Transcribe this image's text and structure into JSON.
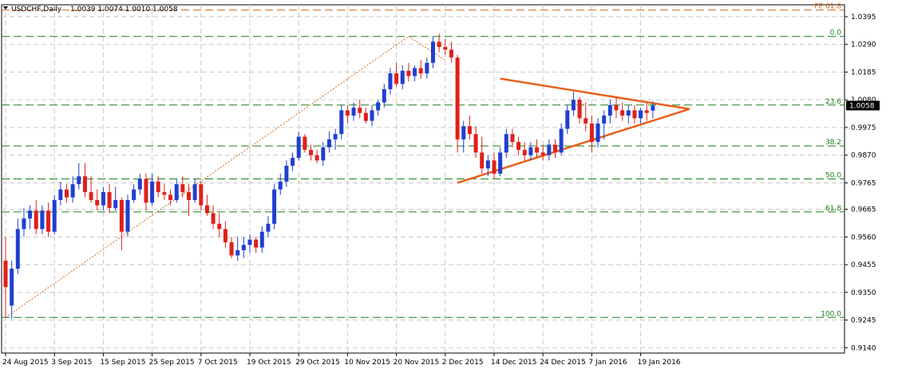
{
  "chart_data": {
    "type": "candlestick",
    "header": {
      "symbol": "USDCHF,Daily",
      "ohlc": "1.0039 1.0074 1.0010 1.0058"
    },
    "ylim": [
      0.912,
      1.044
    ],
    "y_ticks": [
      "1.0395",
      "1.0290",
      "1.0185",
      "1.0080",
      "0.9975",
      "0.9870",
      "0.9765",
      "0.9665",
      "0.9560",
      "0.9455",
      "0.9350",
      "0.9245",
      "0.9140"
    ],
    "x_labels": [
      {
        "label": "24 Aug 2015",
        "index": 0
      },
      {
        "label": "3 Sep 2015",
        "index": 8
      },
      {
        "label": "15 Sep 2015",
        "index": 16
      },
      {
        "label": "25 Sep 2015",
        "index": 24
      },
      {
        "label": "7 Oct 2015",
        "index": 32
      },
      {
        "label": "19 Oct 2015",
        "index": 40
      },
      {
        "label": "29 Oct 2015",
        "index": 48
      },
      {
        "label": "10 Nov 2015",
        "index": 56
      },
      {
        "label": "20 Nov 2015",
        "index": 64
      },
      {
        "label": "2 Dec 2015",
        "index": 72
      },
      {
        "label": "14 Dec 2015",
        "index": 80
      },
      {
        "label": "24 Dec 2015",
        "index": 88
      },
      {
        "label": "7 Jan 2016",
        "index": 96
      },
      {
        "label": "19 Jan 2016",
        "index": 104
      }
    ],
    "current_price": "1.0058",
    "fib_levels": [
      {
        "label": "FE 61.8",
        "value": 1.042,
        "color": "#d2691e"
      },
      {
        "label": "0.0",
        "value": 1.032,
        "color": "#1a7f1a"
      },
      {
        "label": "23.6",
        "value": 1.006,
        "color": "#1a7f1a"
      },
      {
        "label": "38.2",
        "value": 0.9905,
        "color": "#1a7f1a"
      },
      {
        "label": "50.0",
        "value": 0.978,
        "color": "#1a7f1a"
      },
      {
        "label": "61.8",
        "value": 0.9655,
        "color": "#1a7f1a"
      },
      {
        "label": "100.0",
        "value": 0.9255,
        "color": "#1a7f1a"
      }
    ],
    "fib_retracement_line": {
      "from": [
        0,
        0.9255
      ],
      "to": [
        66,
        1.032
      ],
      "color": "#d2691e"
    },
    "pullback_line": {
      "from": [
        66,
        1.032
      ],
      "to": [
        72,
        1.023
      ],
      "color": "#d2691e"
    },
    "triangle": {
      "upper": {
        "from": [
          81,
          1.016
        ],
        "to": [
          112,
          1.0045
        ]
      },
      "lower": {
        "from": [
          74,
          0.9765
        ],
        "to": [
          112,
          1.0045
        ]
      },
      "color": "#e8601c"
    },
    "candles": [
      {
        "o": 0.947,
        "h": 0.956,
        "l": 0.9255,
        "c": 0.937
      },
      {
        "o": 0.93,
        "h": 0.947,
        "l": 0.925,
        "c": 0.944
      },
      {
        "o": 0.944,
        "h": 0.963,
        "l": 0.942,
        "c": 0.959
      },
      {
        "o": 0.959,
        "h": 0.967,
        "l": 0.956,
        "c": 0.963
      },
      {
        "o": 0.963,
        "h": 0.968,
        "l": 0.959,
        "c": 0.966
      },
      {
        "o": 0.966,
        "h": 0.97,
        "l": 0.957,
        "c": 0.959
      },
      {
        "o": 0.959,
        "h": 0.968,
        "l": 0.957,
        "c": 0.966
      },
      {
        "o": 0.966,
        "h": 0.969,
        "l": 0.956,
        "c": 0.958
      },
      {
        "o": 0.958,
        "h": 0.972,
        "l": 0.957,
        "c": 0.97
      },
      {
        "o": 0.97,
        "h": 0.977,
        "l": 0.968,
        "c": 0.974
      },
      {
        "o": 0.974,
        "h": 0.976,
        "l": 0.969,
        "c": 0.971
      },
      {
        "o": 0.971,
        "h": 0.979,
        "l": 0.969,
        "c": 0.976
      },
      {
        "o": 0.976,
        "h": 0.984,
        "l": 0.974,
        "c": 0.979
      },
      {
        "o": 0.979,
        "h": 0.984,
        "l": 0.971,
        "c": 0.973
      },
      {
        "o": 0.973,
        "h": 0.979,
        "l": 0.969,
        "c": 0.97
      },
      {
        "o": 0.97,
        "h": 0.974,
        "l": 0.966,
        "c": 0.968
      },
      {
        "o": 0.968,
        "h": 0.975,
        "l": 0.966,
        "c": 0.973
      },
      {
        "o": 0.973,
        "h": 0.976,
        "l": 0.965,
        "c": 0.967
      },
      {
        "o": 0.967,
        "h": 0.975,
        "l": 0.966,
        "c": 0.97
      },
      {
        "o": 0.97,
        "h": 0.971,
        "l": 0.951,
        "c": 0.958
      },
      {
        "o": 0.958,
        "h": 0.972,
        "l": 0.956,
        "c": 0.97
      },
      {
        "o": 0.97,
        "h": 0.976,
        "l": 0.969,
        "c": 0.974
      },
      {
        "o": 0.974,
        "h": 0.98,
        "l": 0.972,
        "c": 0.978
      },
      {
        "o": 0.978,
        "h": 0.98,
        "l": 0.966,
        "c": 0.969
      },
      {
        "o": 0.969,
        "h": 0.98,
        "l": 0.968,
        "c": 0.977
      },
      {
        "o": 0.977,
        "h": 0.979,
        "l": 0.971,
        "c": 0.973
      },
      {
        "o": 0.973,
        "h": 0.976,
        "l": 0.97,
        "c": 0.972
      },
      {
        "o": 0.972,
        "h": 0.974,
        "l": 0.968,
        "c": 0.97
      },
      {
        "o": 0.97,
        "h": 0.978,
        "l": 0.969,
        "c": 0.976
      },
      {
        "o": 0.976,
        "h": 0.979,
        "l": 0.971,
        "c": 0.973
      },
      {
        "o": 0.973,
        "h": 0.976,
        "l": 0.964,
        "c": 0.97
      },
      {
        "o": 0.97,
        "h": 0.978,
        "l": 0.969,
        "c": 0.976
      },
      {
        "o": 0.976,
        "h": 0.977,
        "l": 0.966,
        "c": 0.968
      },
      {
        "o": 0.968,
        "h": 0.972,
        "l": 0.964,
        "c": 0.965
      },
      {
        "o": 0.965,
        "h": 0.968,
        "l": 0.959,
        "c": 0.961
      },
      {
        "o": 0.961,
        "h": 0.965,
        "l": 0.956,
        "c": 0.959
      },
      {
        "o": 0.959,
        "h": 0.962,
        "l": 0.952,
        "c": 0.954
      },
      {
        "o": 0.954,
        "h": 0.956,
        "l": 0.948,
        "c": 0.949
      },
      {
        "o": 0.949,
        "h": 0.956,
        "l": 0.947,
        "c": 0.951
      },
      {
        "o": 0.951,
        "h": 0.956,
        "l": 0.948,
        "c": 0.953
      },
      {
        "o": 0.953,
        "h": 0.957,
        "l": 0.95,
        "c": 0.955
      },
      {
        "o": 0.955,
        "h": 0.956,
        "l": 0.95,
        "c": 0.952
      },
      {
        "o": 0.952,
        "h": 0.96,
        "l": 0.95,
        "c": 0.958
      },
      {
        "o": 0.958,
        "h": 0.964,
        "l": 0.956,
        "c": 0.961
      },
      {
        "o": 0.961,
        "h": 0.976,
        "l": 0.959,
        "c": 0.974
      },
      {
        "o": 0.974,
        "h": 0.98,
        "l": 0.972,
        "c": 0.977
      },
      {
        "o": 0.977,
        "h": 0.985,
        "l": 0.975,
        "c": 0.983
      },
      {
        "o": 0.983,
        "h": 0.988,
        "l": 0.981,
        "c": 0.986
      },
      {
        "o": 0.986,
        "h": 0.996,
        "l": 0.985,
        "c": 0.994
      },
      {
        "o": 0.994,
        "h": 0.995,
        "l": 0.988,
        "c": 0.989
      },
      {
        "o": 0.989,
        "h": 0.991,
        "l": 0.985,
        "c": 0.987
      },
      {
        "o": 0.987,
        "h": 0.989,
        "l": 0.984,
        "c": 0.985
      },
      {
        "o": 0.985,
        "h": 0.992,
        "l": 0.983,
        "c": 0.99
      },
      {
        "o": 0.99,
        "h": 0.996,
        "l": 0.988,
        "c": 0.993
      },
      {
        "o": 0.993,
        "h": 0.997,
        "l": 0.989,
        "c": 0.995
      },
      {
        "o": 0.995,
        "h": 1.006,
        "l": 0.993,
        "c": 1.004
      },
      {
        "o": 1.004,
        "h": 1.006,
        "l": 0.999,
        "c": 1.002
      },
      {
        "o": 1.002,
        "h": 1.007,
        "l": 1.0,
        "c": 1.005
      },
      {
        "o": 1.005,
        "h": 1.008,
        "l": 1.001,
        "c": 1.003
      },
      {
        "o": 1.003,
        "h": 1.005,
        "l": 0.999,
        "c": 1.0
      },
      {
        "o": 1.0,
        "h": 1.006,
        "l": 0.998,
        "c": 1.004
      },
      {
        "o": 1.004,
        "h": 1.008,
        "l": 1.002,
        "c": 1.007
      },
      {
        "o": 1.007,
        "h": 1.014,
        "l": 1.005,
        "c": 1.012
      },
      {
        "o": 1.012,
        "h": 1.02,
        "l": 1.01,
        "c": 1.018
      },
      {
        "o": 1.018,
        "h": 1.022,
        "l": 1.013,
        "c": 1.014
      },
      {
        "o": 1.014,
        "h": 1.021,
        "l": 1.012,
        "c": 1.019
      },
      {
        "o": 1.019,
        "h": 1.022,
        "l": 1.015,
        "c": 1.017
      },
      {
        "o": 1.017,
        "h": 1.021,
        "l": 1.015,
        "c": 1.02
      },
      {
        "o": 1.02,
        "h": 1.023,
        "l": 1.016,
        "c": 1.018
      },
      {
        "o": 1.018,
        "h": 1.024,
        "l": 1.016,
        "c": 1.022
      },
      {
        "o": 1.022,
        "h": 1.032,
        "l": 1.02,
        "c": 1.03
      },
      {
        "o": 1.03,
        "h": 1.033,
        "l": 1.026,
        "c": 1.028
      },
      {
        "o": 1.028,
        "h": 1.031,
        "l": 1.025,
        "c": 1.027
      },
      {
        "o": 1.027,
        "h": 1.03,
        "l": 1.022,
        "c": 1.024
      },
      {
        "o": 1.024,
        "h": 1.025,
        "l": 0.988,
        "c": 0.993
      },
      {
        "o": 0.993,
        "h": 1.0,
        "l": 0.988,
        "c": 0.998
      },
      {
        "o": 0.998,
        "h": 1.002,
        "l": 0.993,
        "c": 0.995
      },
      {
        "o": 0.995,
        "h": 0.998,
        "l": 0.986,
        "c": 0.988
      },
      {
        "o": 0.988,
        "h": 0.994,
        "l": 0.98,
        "c": 0.982
      },
      {
        "o": 0.982,
        "h": 0.987,
        "l": 0.979,
        "c": 0.985
      },
      {
        "o": 0.985,
        "h": 0.988,
        "l": 0.978,
        "c": 0.98
      },
      {
        "o": 0.98,
        "h": 0.99,
        "l": 0.979,
        "c": 0.988
      },
      {
        "o": 0.988,
        "h": 0.997,
        "l": 0.986,
        "c": 0.995
      },
      {
        "o": 0.995,
        "h": 0.997,
        "l": 0.99,
        "c": 0.992
      },
      {
        "o": 0.992,
        "h": 0.994,
        "l": 0.987,
        "c": 0.989
      },
      {
        "o": 0.989,
        "h": 0.992,
        "l": 0.985,
        "c": 0.987
      },
      {
        "o": 0.987,
        "h": 0.992,
        "l": 0.985,
        "c": 0.99
      },
      {
        "o": 0.99,
        "h": 0.993,
        "l": 0.986,
        "c": 0.988
      },
      {
        "o": 0.988,
        "h": 0.991,
        "l": 0.985,
        "c": 0.987
      },
      {
        "o": 0.987,
        "h": 0.993,
        "l": 0.985,
        "c": 0.991
      },
      {
        "o": 0.991,
        "h": 0.993,
        "l": 0.986,
        "c": 0.988
      },
      {
        "o": 0.988,
        "h": 0.999,
        "l": 0.987,
        "c": 0.997
      },
      {
        "o": 0.997,
        "h": 1.006,
        "l": 0.995,
        "c": 1.004
      },
      {
        "o": 1.004,
        "h": 1.011,
        "l": 1.002,
        "c": 1.008
      },
      {
        "o": 1.008,
        "h": 1.009,
        "l": 0.999,
        "c": 1.001
      },
      {
        "o": 1.001,
        "h": 1.007,
        "l": 0.996,
        "c": 0.999
      },
      {
        "o": 0.999,
        "h": 1.002,
        "l": 0.988,
        "c": 0.992
      },
      {
        "o": 0.992,
        "h": 1.001,
        "l": 0.99,
        "c": 0.999
      },
      {
        "o": 0.999,
        "h": 1.004,
        "l": 0.993,
        "c": 1.002
      },
      {
        "o": 1.002,
        "h": 1.008,
        "l": 0.999,
        "c": 1.006
      },
      {
        "o": 1.006,
        "h": 1.009,
        "l": 1.001,
        "c": 1.004
      },
      {
        "o": 1.004,
        "h": 1.007,
        "l": 1.0,
        "c": 1.002
      },
      {
        "o": 1.002,
        "h": 1.006,
        "l": 0.999,
        "c": 1.004
      },
      {
        "o": 1.004,
        "h": 1.006,
        "l": 0.999,
        "c": 1.001
      },
      {
        "o": 1.001,
        "h": 1.005,
        "l": 0.999,
        "c": 1.004
      },
      {
        "o": 1.004,
        "h": 1.007,
        "l": 1.0,
        "c": 1.003
      },
      {
        "o": 1.0039,
        "h": 1.0074,
        "l": 1.001,
        "c": 1.0058
      }
    ],
    "colors": {
      "bull": "#1f3fd1",
      "bear": "#e0201b",
      "grid": "#c8c8c8",
      "fib": "#1a7f1a",
      "fe": "#d2691e",
      "triangle": "#e8601c",
      "price_bg": "#000000",
      "price_fg": "#ffffff"
    }
  }
}
